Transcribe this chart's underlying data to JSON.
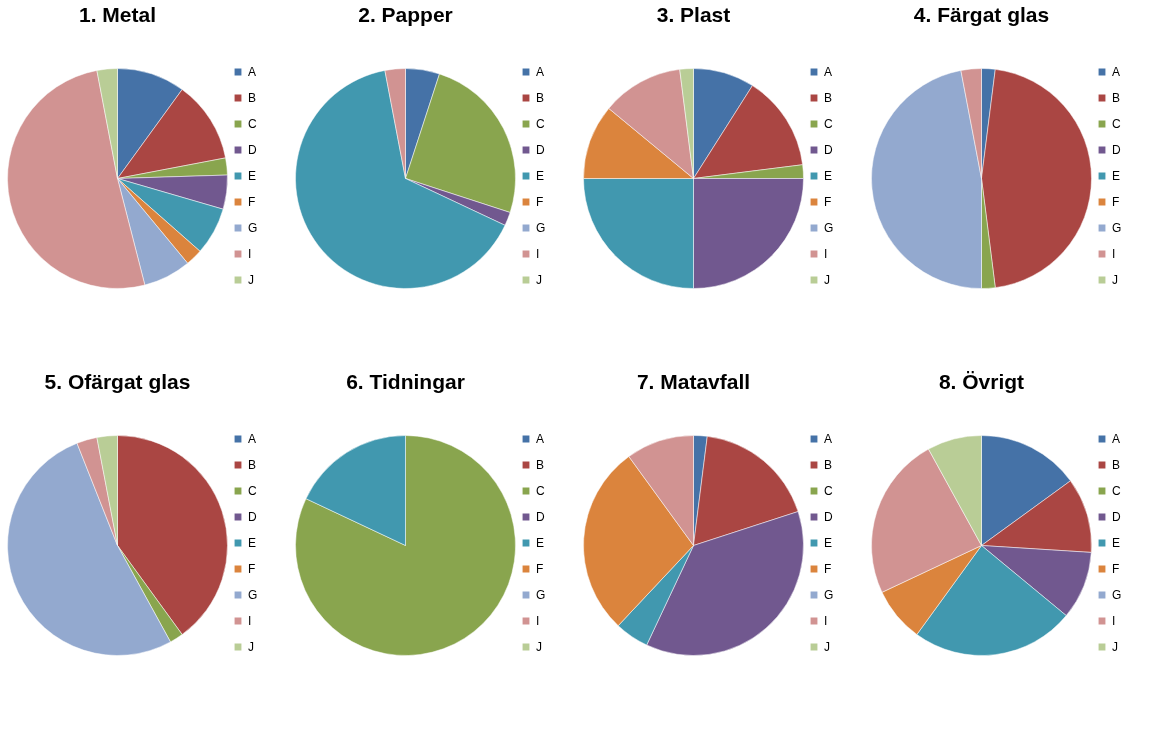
{
  "chart_data": [
    {
      "type": "pie",
      "title": "1. Metal",
      "categories": [
        "A",
        "B",
        "C",
        "D",
        "E",
        "F",
        "G",
        "I",
        "J"
      ],
      "values": [
        10,
        12,
        2.5,
        5,
        7,
        2.5,
        7,
        51,
        3
      ],
      "colors": [
        "#4572a7",
        "#aa4643",
        "#89a54e",
        "#71588f",
        "#4198af",
        "#db843d",
        "#93a9cf",
        "#d19392",
        "#b9cd96"
      ],
      "legend": "right"
    },
    {
      "type": "pie",
      "title": "2. Papper",
      "categories": [
        "A",
        "B",
        "C",
        "D",
        "E",
        "F",
        "G",
        "I",
        "J"
      ],
      "values": [
        5,
        0,
        25,
        2,
        65,
        0,
        0,
        3,
        0
      ],
      "colors": [
        "#4572a7",
        "#aa4643",
        "#89a54e",
        "#71588f",
        "#4198af",
        "#db843d",
        "#93a9cf",
        "#d19392",
        "#b9cd96"
      ],
      "legend": "right"
    },
    {
      "type": "pie",
      "title": "3. Plast",
      "categories": [
        "A",
        "B",
        "C",
        "D",
        "E",
        "F",
        "G",
        "I",
        "J"
      ],
      "values": [
        9,
        14,
        2,
        25,
        25,
        11,
        0,
        12,
        2
      ],
      "colors": [
        "#4572a7",
        "#aa4643",
        "#89a54e",
        "#71588f",
        "#4198af",
        "#db843d",
        "#93a9cf",
        "#d19392",
        "#b9cd96"
      ],
      "legend": "right"
    },
    {
      "type": "pie",
      "title": "4. Färgat glas",
      "categories": [
        "A",
        "B",
        "C",
        "D",
        "E",
        "F",
        "G",
        "I",
        "J"
      ],
      "values": [
        2,
        46,
        2,
        0,
        0,
        0,
        47,
        3,
        0
      ],
      "colors": [
        "#4572a7",
        "#aa4643",
        "#89a54e",
        "#71588f",
        "#4198af",
        "#db843d",
        "#93a9cf",
        "#d19392",
        "#b9cd96"
      ],
      "legend": "right"
    },
    {
      "type": "pie",
      "title": "5. Ofärgat glas",
      "categories": [
        "A",
        "B",
        "C",
        "D",
        "E",
        "F",
        "G",
        "I",
        "J"
      ],
      "values": [
        0,
        40,
        2,
        0,
        0,
        0,
        52,
        3,
        3
      ],
      "colors": [
        "#4572a7",
        "#aa4643",
        "#89a54e",
        "#71588f",
        "#4198af",
        "#db843d",
        "#93a9cf",
        "#d19392",
        "#b9cd96"
      ],
      "legend": "right"
    },
    {
      "type": "pie",
      "title": "6. Tidningar",
      "categories": [
        "A",
        "B",
        "C",
        "D",
        "E",
        "F",
        "G",
        "I",
        "J"
      ],
      "values": [
        0,
        0,
        82,
        0,
        18,
        0,
        0,
        0,
        0
      ],
      "colors": [
        "#4572a7",
        "#aa4643",
        "#89a54e",
        "#71588f",
        "#4198af",
        "#db843d",
        "#93a9cf",
        "#d19392",
        "#b9cd96"
      ],
      "legend": "right"
    },
    {
      "type": "pie",
      "title": "7. Matavfall",
      "categories": [
        "A",
        "B",
        "C",
        "D",
        "E",
        "F",
        "G",
        "I",
        "J"
      ],
      "values": [
        2,
        18,
        0,
        37,
        5,
        28,
        0,
        10,
        0
      ],
      "colors": [
        "#4572a7",
        "#aa4643",
        "#89a54e",
        "#71588f",
        "#4198af",
        "#db843d",
        "#93a9cf",
        "#d19392",
        "#b9cd96"
      ],
      "legend": "right"
    },
    {
      "type": "pie",
      "title": "8. Övrigt",
      "categories": [
        "A",
        "B",
        "C",
        "D",
        "E",
        "F",
        "G",
        "I",
        "J"
      ],
      "values": [
        15,
        11,
        0,
        10,
        24,
        8,
        0,
        24,
        8
      ],
      "colors": [
        "#4572a7",
        "#aa4643",
        "#89a54e",
        "#71588f",
        "#4198af",
        "#db843d",
        "#93a9cf",
        "#d19392",
        "#b9cd96"
      ],
      "legend": "right"
    }
  ]
}
